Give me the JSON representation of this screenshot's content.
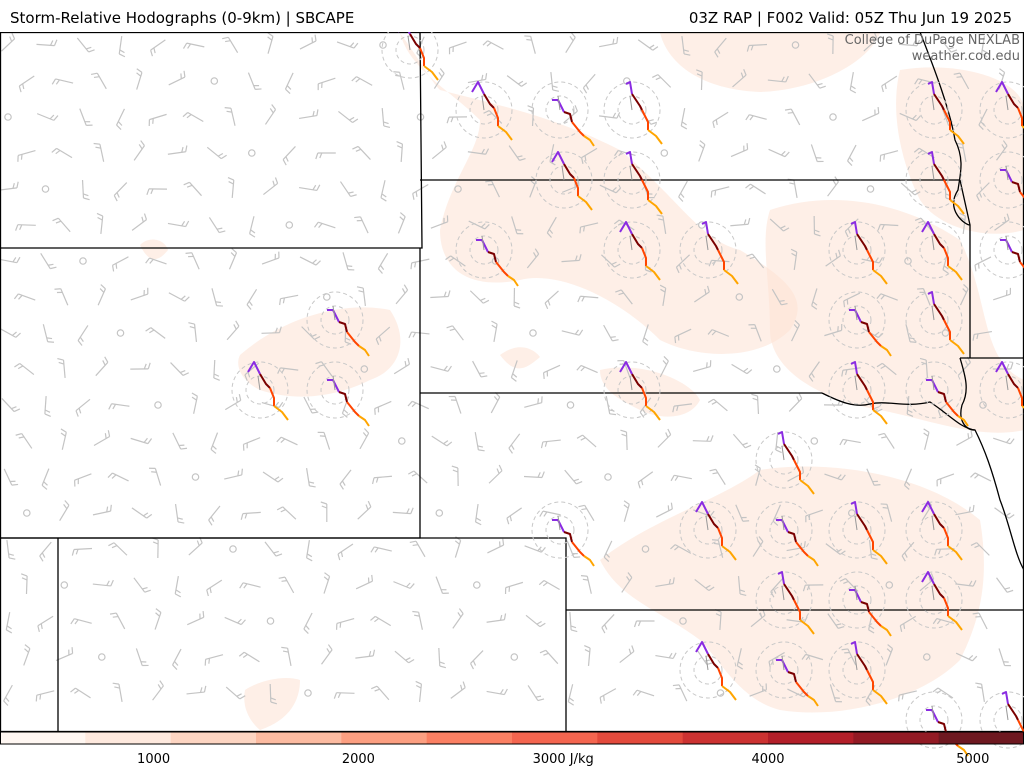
{
  "header": {
    "left_title": "Storm-Relative Hodographs (0-9km) | SBCAPE",
    "right_title": "03Z RAP | F002 Valid: 05Z Thu Jun 19 2025"
  },
  "credits": {
    "line1": "College of DuPage NEXLAB",
    "line2": "weather.cod.edu"
  },
  "colorbar": {
    "unit": "J/kg",
    "tick_labels": [
      "1000",
      "2000",
      "3000 J/kg",
      "4000",
      "5000"
    ],
    "range": [
      250,
      5250
    ],
    "colors": [
      "#fff7f2",
      "#fee9de",
      "#fdd5c2",
      "#fcbba1",
      "#fc9f81",
      "#fb8063",
      "#f4654f",
      "#e34a3c",
      "#cc3231",
      "#b31f29",
      "#921a24",
      "#6e1820"
    ]
  },
  "colors": {
    "boundary": "#000000",
    "barb": "#bdbdbd",
    "cape_fill": "#fde2d3",
    "hodo_segments": [
      "#8a2be2",
      "#7a0000",
      "#ff4500",
      "#ffa500"
    ]
  },
  "hodographs": [
    {
      "id": "h1",
      "segments": [
        [
          [
            -8,
            -10
          ],
          [
            -2,
            -10
          ],
          [
            4,
            2
          ]
        ],
        [
          [
            4,
            2
          ],
          [
            10,
            4
          ],
          [
            12,
            12
          ]
        ],
        [
          [
            12,
            12
          ],
          [
            20,
            22
          ],
          [
            24,
            26
          ]
        ],
        [
          [
            24,
            26
          ],
          [
            30,
            30
          ],
          [
            34,
            36
          ]
        ]
      ]
    },
    {
      "id": "h2",
      "segments": [
        [
          [
            -12,
            -18
          ],
          [
            -6,
            -28
          ],
          [
            0,
            -16
          ]
        ],
        [
          [
            0,
            -16
          ],
          [
            6,
            -6
          ],
          [
            10,
            -2
          ]
        ],
        [
          [
            10,
            -2
          ],
          [
            14,
            8
          ],
          [
            14,
            16
          ]
        ],
        [
          [
            14,
            16
          ],
          [
            22,
            22
          ],
          [
            28,
            30
          ]
        ]
      ]
    },
    {
      "id": "h3",
      "segments": [
        [
          [
            -6,
            -26
          ],
          [
            -2,
            -28
          ],
          [
            0,
            -16
          ]
        ],
        [
          [
            0,
            -16
          ],
          [
            8,
            -4
          ],
          [
            10,
            0
          ]
        ],
        [
          [
            10,
            0
          ],
          [
            16,
            12
          ],
          [
            16,
            20
          ]
        ],
        [
          [
            16,
            20
          ],
          [
            24,
            26
          ],
          [
            30,
            34
          ]
        ]
      ]
    }
  ]
}
